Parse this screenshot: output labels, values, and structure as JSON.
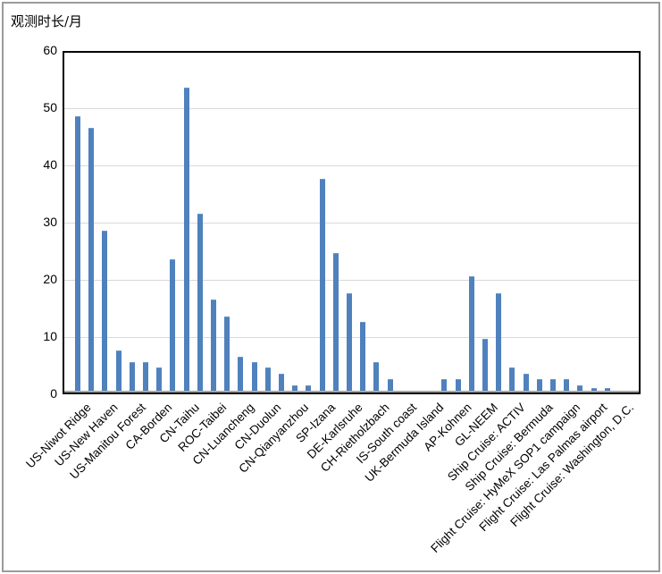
{
  "chart_data": {
    "type": "bar",
    "axis_title": "观测时长/月",
    "ylabel": "观测时长/月",
    "xlabel": "",
    "ylim": [
      0,
      60
    ],
    "ytick_step": 10,
    "yticks": [
      0,
      10,
      20,
      30,
      40,
      50,
      60
    ],
    "grid": true,
    "legend": "none",
    "bar_color": "#4F81BD",
    "gridline_color": "#D9D9D9",
    "plot_border_color": "#000000",
    "axis_line_color": "#A6A6A6",
    "n_slots": 41,
    "label_slot_interval": 2,
    "values": [
      48,
      46,
      28,
      7,
      5,
      5,
      4,
      23,
      53,
      31,
      16,
      13,
      6,
      5,
      4,
      3,
      1,
      1,
      37,
      24,
      17,
      12,
      5,
      2,
      0,
      0,
      0,
      2,
      2,
      20,
      9,
      17,
      4,
      3,
      2,
      2,
      2,
      1,
      0.5,
      0.5,
      0
    ],
    "category_labels": [
      "US-Niwot Ridge",
      "US-New Haven",
      "US-Manitou Forest",
      "CA-Borden",
      "CN-Taihu",
      "ROC-Taibei",
      "CN-Luancheng",
      "CN-Duolun",
      "CN-Qianyanzhou",
      "SP-Izana",
      "DE-Karlsruhe",
      "CH-Rietholzbach",
      "IS-South coast",
      "UK-Bermuda Island",
      "AP-Kohnen",
      "GL-NEEM",
      "Ship Cruise: ACTIV",
      "Ship Cruise: Bermuda",
      "Flight Cruise: HyMeX SOP1 campaign",
      "Flight Cruise: Las Palmas airport",
      "Flight Cruise: Washington, D.C."
    ]
  }
}
